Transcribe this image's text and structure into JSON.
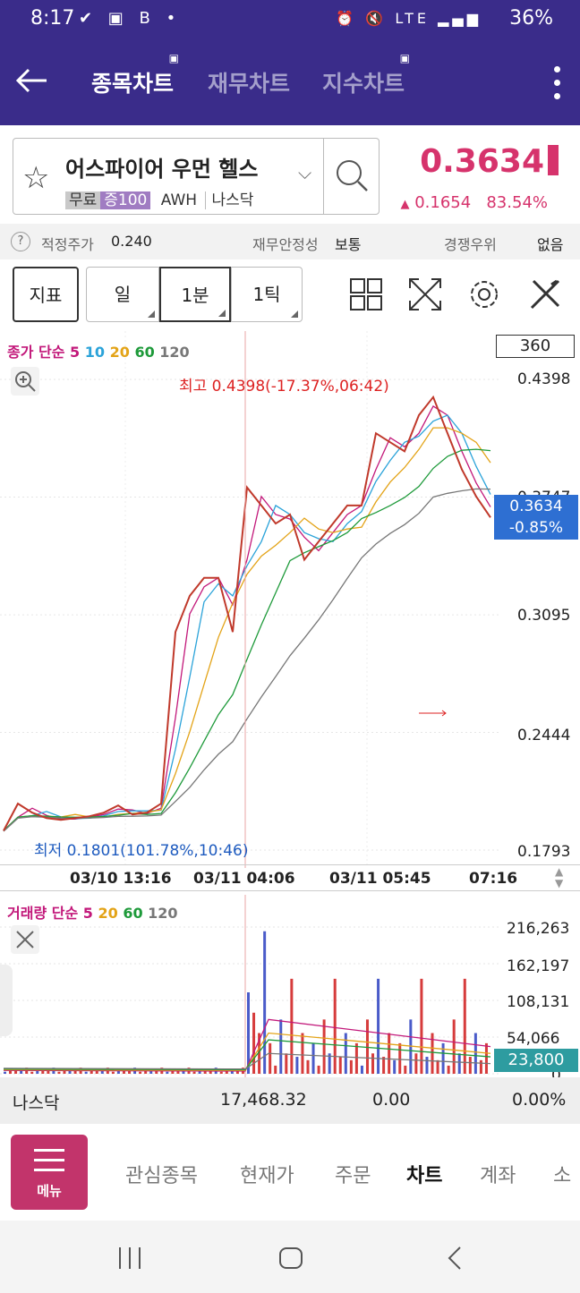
{
  "status_bar": {
    "time": "8:17",
    "battery": "36%",
    "network": "LTE"
  },
  "header": {
    "tabs": [
      {
        "label": "종목차트",
        "active": true
      },
      {
        "label": "재무차트",
        "active": false
      },
      {
        "label": "지수차트",
        "active": false
      }
    ]
  },
  "stock": {
    "name": "어스파이어 우먼 헬스",
    "tag_free": "무료",
    "tag_margin": "증100",
    "code": "AWH",
    "market": "나스닥",
    "price": "0.3634",
    "change": "0.1654",
    "change_pct": "83.54%"
  },
  "info": {
    "fair_label": "적정주가",
    "fair_value": "0.240",
    "stability_label": "재무안정성",
    "stability_value": "보통",
    "competition_label": "경쟁우위",
    "competition_value": "없음"
  },
  "toolbar": {
    "indicator": "지표",
    "day": "일",
    "minute": "1분",
    "tick": "1틱"
  },
  "chart": {
    "legend_title": "종가 단순",
    "ma": [
      {
        "label": "5",
        "color": "#c2187a"
      },
      {
        "label": "10",
        "color": "#2ba3d9"
      },
      {
        "label": "20",
        "color": "#e3a317"
      },
      {
        "label": "60",
        "color": "#1e9a3a"
      },
      {
        "label": "120",
        "color": "#777777"
      }
    ],
    "period": "360",
    "y_labels": [
      "0.4398",
      "0.3747",
      "0.3095",
      "0.2444",
      "0.1793"
    ],
    "current_price": "0.3634",
    "current_change": "-0.85%",
    "high_label": "최고 0.4398(-17.37%,06:42)",
    "low_label": "최저 0.1801(101.78%,10:46)",
    "x_labels": [
      "03/10 13:16",
      "03/11 04:06",
      "03/11 05:45",
      "07:16"
    ]
  },
  "volume": {
    "legend_title": "거래량 단순",
    "ma": [
      {
        "label": "5",
        "color": "#c2187a"
      },
      {
        "label": "20",
        "color": "#e3a317"
      },
      {
        "label": "60",
        "color": "#1e9a3a"
      },
      {
        "label": "120",
        "color": "#777777"
      }
    ],
    "y_labels": [
      "216,263",
      "162,197",
      "108,131",
      "54,066",
      "0"
    ],
    "current": "23,800"
  },
  "index_row": {
    "name": "나스닥",
    "value": "17,468.32",
    "change": "0.00",
    "pct": "0.00%"
  },
  "bottom_nav": {
    "menu_label": "메뉴",
    "items": [
      "관심종목",
      "현재가",
      "주문",
      "차트",
      "계좌",
      "소"
    ],
    "active": "차트"
  },
  "chart_data": {
    "type": "line",
    "title": "",
    "x": [
      "03/10 13:16",
      "03/11 04:06",
      "03/11 05:45",
      "07:16"
    ],
    "y_ticks": [
      0.1793,
      0.2444,
      0.3095,
      0.3747,
      0.4398
    ],
    "ylim": [
      0.1793,
      0.4398
    ],
    "high": 0.4398,
    "low": 0.1801,
    "last": 0.3634,
    "close_series": [
      0.19,
      0.205,
      0.2,
      0.197,
      0.196,
      0.197,
      0.198,
      0.2,
      0.204,
      0.199,
      0.2,
      0.205,
      0.3,
      0.32,
      0.33,
      0.33,
      0.3,
      0.38,
      0.37,
      0.36,
      0.365,
      0.34,
      0.35,
      0.36,
      0.37,
      0.37,
      0.41,
      0.405,
      0.4,
      0.42,
      0.43,
      0.41,
      0.39,
      0.375,
      0.3634
    ],
    "volume_ticks": [
      0,
      54066,
      108131,
      162197,
      216263
    ]
  }
}
